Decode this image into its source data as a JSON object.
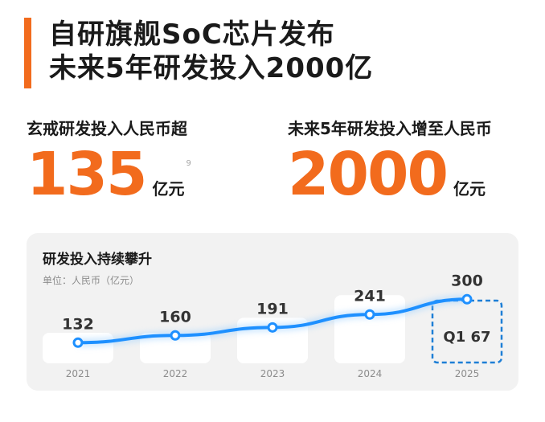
{
  "header": {
    "title_line1": "自研旗舰SoC芯片发布",
    "title_line2": "未来5年研发投入2000亿"
  },
  "stats": [
    {
      "label": "玄戒研发投入人民币超",
      "value": "135",
      "unit": "亿元",
      "footnote": "9"
    },
    {
      "label": "未来5年研发投入增至人民币",
      "value": "2000",
      "unit": "亿元"
    }
  ],
  "chart_card": {
    "title": "研发投入持续攀升",
    "unit_label": "单位：人民币（亿元）"
  },
  "chart_data": {
    "type": "line",
    "title": "研发投入持续攀升",
    "unit": "单位：人民币（亿元）",
    "categories": [
      "2021",
      "2022",
      "2023",
      "2024",
      "2025"
    ],
    "values": [
      132,
      160,
      191,
      241,
      300
    ],
    "annotation": {
      "category": "2025",
      "text": "Q1 67"
    },
    "colors": {
      "line": "#1e90ff",
      "accent": "#f26b1d"
    }
  }
}
